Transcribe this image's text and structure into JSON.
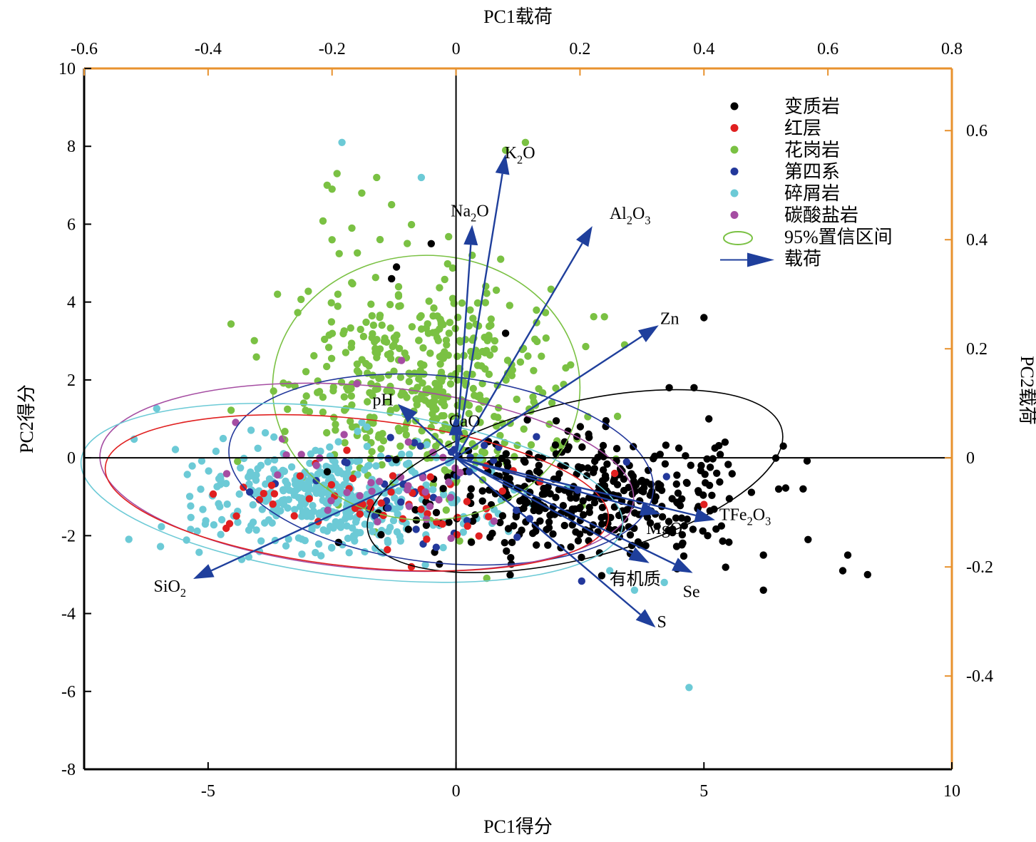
{
  "chart_data": {
    "type": "scatter",
    "title": "",
    "axes": {
      "bottom": {
        "label": "PC1得分",
        "range": [
          -7.5,
          10
        ],
        "ticks": [
          "-5",
          "0",
          "5",
          "10"
        ],
        "tick_values": [
          -5,
          0,
          5,
          10
        ]
      },
      "left": {
        "label": "PC2得分",
        "range": [
          -8,
          10
        ],
        "ticks": [
          "10",
          "8",
          "6",
          "4",
          "2",
          "0",
          "-2",
          "-4",
          "-6",
          "-8"
        ],
        "tick_values": [
          10,
          8,
          6,
          4,
          2,
          0,
          -2,
          -4,
          -6,
          -8
        ]
      },
      "top": {
        "label": "PC1载荷",
        "range": [
          -0.6,
          0.8
        ],
        "ticks": [
          "-0.6",
          "-0.4",
          "-0.2",
          "0",
          "0.2",
          "0.4",
          "0.6",
          "0.8"
        ],
        "tick_values": [
          -0.6,
          -0.4,
          -0.2,
          0,
          0.2,
          0.4,
          0.6,
          0.8
        ]
      },
      "right": {
        "label": "PC2载荷",
        "range": [
          -0.571,
          0.714
        ],
        "ticks": [
          "0.6",
          "0.4",
          "0.2",
          "0",
          "-0.2",
          "-0.4"
        ],
        "tick_values": [
          0.6,
          0.4,
          0.2,
          0,
          -0.2,
          -0.4
        ]
      }
    },
    "colors": {
      "axis_secondary": "#e8922e",
      "arrow": "#1f3f9c",
      "frame": "#000000"
    },
    "legend": {
      "placement": "top-right",
      "items": [
        {
          "label": "变质岩",
          "color": "#000000",
          "kind": "dot"
        },
        {
          "label": "红层",
          "color": "#e02020",
          "kind": "dot"
        },
        {
          "label": "花岗岩",
          "color": "#7ac143",
          "kind": "dot"
        },
        {
          "label": "第四系",
          "color": "#23389b",
          "kind": "dot"
        },
        {
          "label": "碎屑岩",
          "color": "#6ccad6",
          "kind": "dot"
        },
        {
          "label": "碳酸盐岩",
          "color": "#a54da2",
          "kind": "dot"
        },
        {
          "label": "95%置信区间",
          "color": "#7ac143",
          "kind": "ellipse"
        },
        {
          "label": "载荷",
          "color": "#1f3f9c",
          "kind": "arrow"
        }
      ]
    },
    "loadings": [
      {
        "label": "K₂O",
        "x": 0.08,
        "y": 0.557
      },
      {
        "label": "Na₂O",
        "x": 0.026,
        "y": 0.427
      },
      {
        "label": "Al₂O₃",
        "x": 0.22,
        "y": 0.425
      },
      {
        "label": "Zn",
        "x": 0.327,
        "y": 0.243
      },
      {
        "label": "pH",
        "x": -0.094,
        "y": 0.099
      },
      {
        "label": "CaO",
        "x": 0.0,
        "y": 0.078
      },
      {
        "label": "TFe₂O₃",
        "x": 0.418,
        "y": -0.114
      },
      {
        "label": "MgO",
        "x": 0.33,
        "y": -0.103
      },
      {
        "label": "有机质",
        "x": 0.312,
        "y": -0.193
      },
      {
        "label": "Se",
        "x": 0.382,
        "y": -0.211
      },
      {
        "label": "S",
        "x": 0.322,
        "y": -0.311
      },
      {
        "label": "SiO₂",
        "x": -0.424,
        "y": -0.222
      }
    ],
    "ellipses": [
      {
        "group": "花岗岩",
        "color": "#7ac143",
        "cx": -0.6,
        "cy": 1.8,
        "rx": 3.1,
        "ry": 3.4,
        "angle": 0
      },
      {
        "group": "变质岩",
        "color": "#000000",
        "cx": 2.4,
        "cy": -0.6,
        "rx": 4.3,
        "ry": 2.0,
        "angle": -14
      },
      {
        "group": "第四系",
        "color": "#23389b",
        "cx": -0.3,
        "cy": -0.3,
        "rx": 4.3,
        "ry": 2.4,
        "angle": 6
      },
      {
        "group": "碳酸盐岩",
        "color": "#a54da2",
        "cx": -1.8,
        "cy": -0.5,
        "rx": 5.4,
        "ry": 2.35,
        "angle": 5
      },
      {
        "group": "红层",
        "color": "#e02020",
        "cx": -2.0,
        "cy": -0.9,
        "rx": 5.1,
        "ry": 1.9,
        "angle": 6
      },
      {
        "group": "碎屑岩",
        "color": "#6ccad6",
        "cx": -2.1,
        "cy": -0.9,
        "rx": 5.5,
        "ry": 2.15,
        "angle": 7
      }
    ],
    "series": [
      {
        "name": "变质岩",
        "color": "#000000",
        "center": [
          2.6,
          -1.0
        ],
        "spread": [
          1.5,
          0.75
        ],
        "count": 380,
        "outliers": [
          [
            4.3,
            1.8
          ],
          [
            5.0,
            3.6
          ],
          [
            6.6,
            0.3
          ],
          [
            7.1,
            -2.1
          ],
          [
            7.9,
            -2.5
          ],
          [
            8.3,
            -3.0
          ],
          [
            7.8,
            -2.9
          ],
          [
            6.2,
            -3.4
          ],
          [
            6.2,
            -2.5
          ],
          [
            7.0,
            -0.8
          ],
          [
            -0.5,
            5.5
          ],
          [
            -1.2,
            4.9
          ],
          [
            -1.3,
            4.6
          ],
          [
            1.0,
            3.2
          ],
          [
            4.8,
            1.8
          ],
          [
            5.1,
            1.0
          ]
        ]
      },
      {
        "name": "红层",
        "color": "#e02020",
        "center": [
          -1.8,
          -1.1
        ],
        "spread": [
          1.6,
          0.6
        ],
        "count": 55,
        "outliers": [
          [
            5.0,
            -1.2
          ],
          [
            3.2,
            -0.4
          ],
          [
            -0.9,
            -2.8
          ]
        ]
      },
      {
        "name": "花岗岩",
        "color": "#7ac143",
        "center": [
          -0.6,
          1.8
        ],
        "spread": [
          1.3,
          1.35
        ],
        "count": 470,
        "outliers": [
          [
            -2.4,
            7.3
          ],
          [
            -2.5,
            6.9
          ],
          [
            -1.9,
            6.8
          ],
          [
            -1.3,
            6.5
          ],
          [
            -1.6,
            7.2
          ],
          [
            -2.6,
            7.0
          ],
          [
            1.4,
            8.1
          ],
          [
            1.0,
            7.9
          ],
          [
            -2.5,
            5.6
          ],
          [
            -2.1,
            5.9
          ],
          [
            -3.6,
            4.2
          ],
          [
            0.9,
            5.1
          ],
          [
            3.4,
            2.9
          ]
        ]
      },
      {
        "name": "第四系",
        "color": "#23389b",
        "center": [
          -0.6,
          -0.5
        ],
        "spread": [
          1.6,
          0.8
        ],
        "count": 40,
        "outliers": [
          [
            -0.4,
            -2.3
          ]
        ]
      },
      {
        "name": "碎屑岩",
        "color": "#6ccad6",
        "center": [
          -2.4,
          -1.0
        ],
        "spread": [
          1.55,
          0.7
        ],
        "count": 430,
        "outliers": [
          [
            -2.3,
            8.1
          ],
          [
            -0.7,
            7.2
          ],
          [
            4.7,
            -5.9
          ],
          [
            3.1,
            -2.9
          ],
          [
            4.2,
            -3.2
          ],
          [
            3.6,
            -3.4
          ]
        ]
      },
      {
        "name": "碳酸盐岩",
        "color": "#a54da2",
        "center": [
          -1.6,
          -0.6
        ],
        "spread": [
          1.4,
          0.8
        ],
        "count": 35,
        "outliers": [
          [
            -2.0,
            1.9
          ],
          [
            -1.1,
            2.5
          ]
        ]
      }
    ]
  }
}
